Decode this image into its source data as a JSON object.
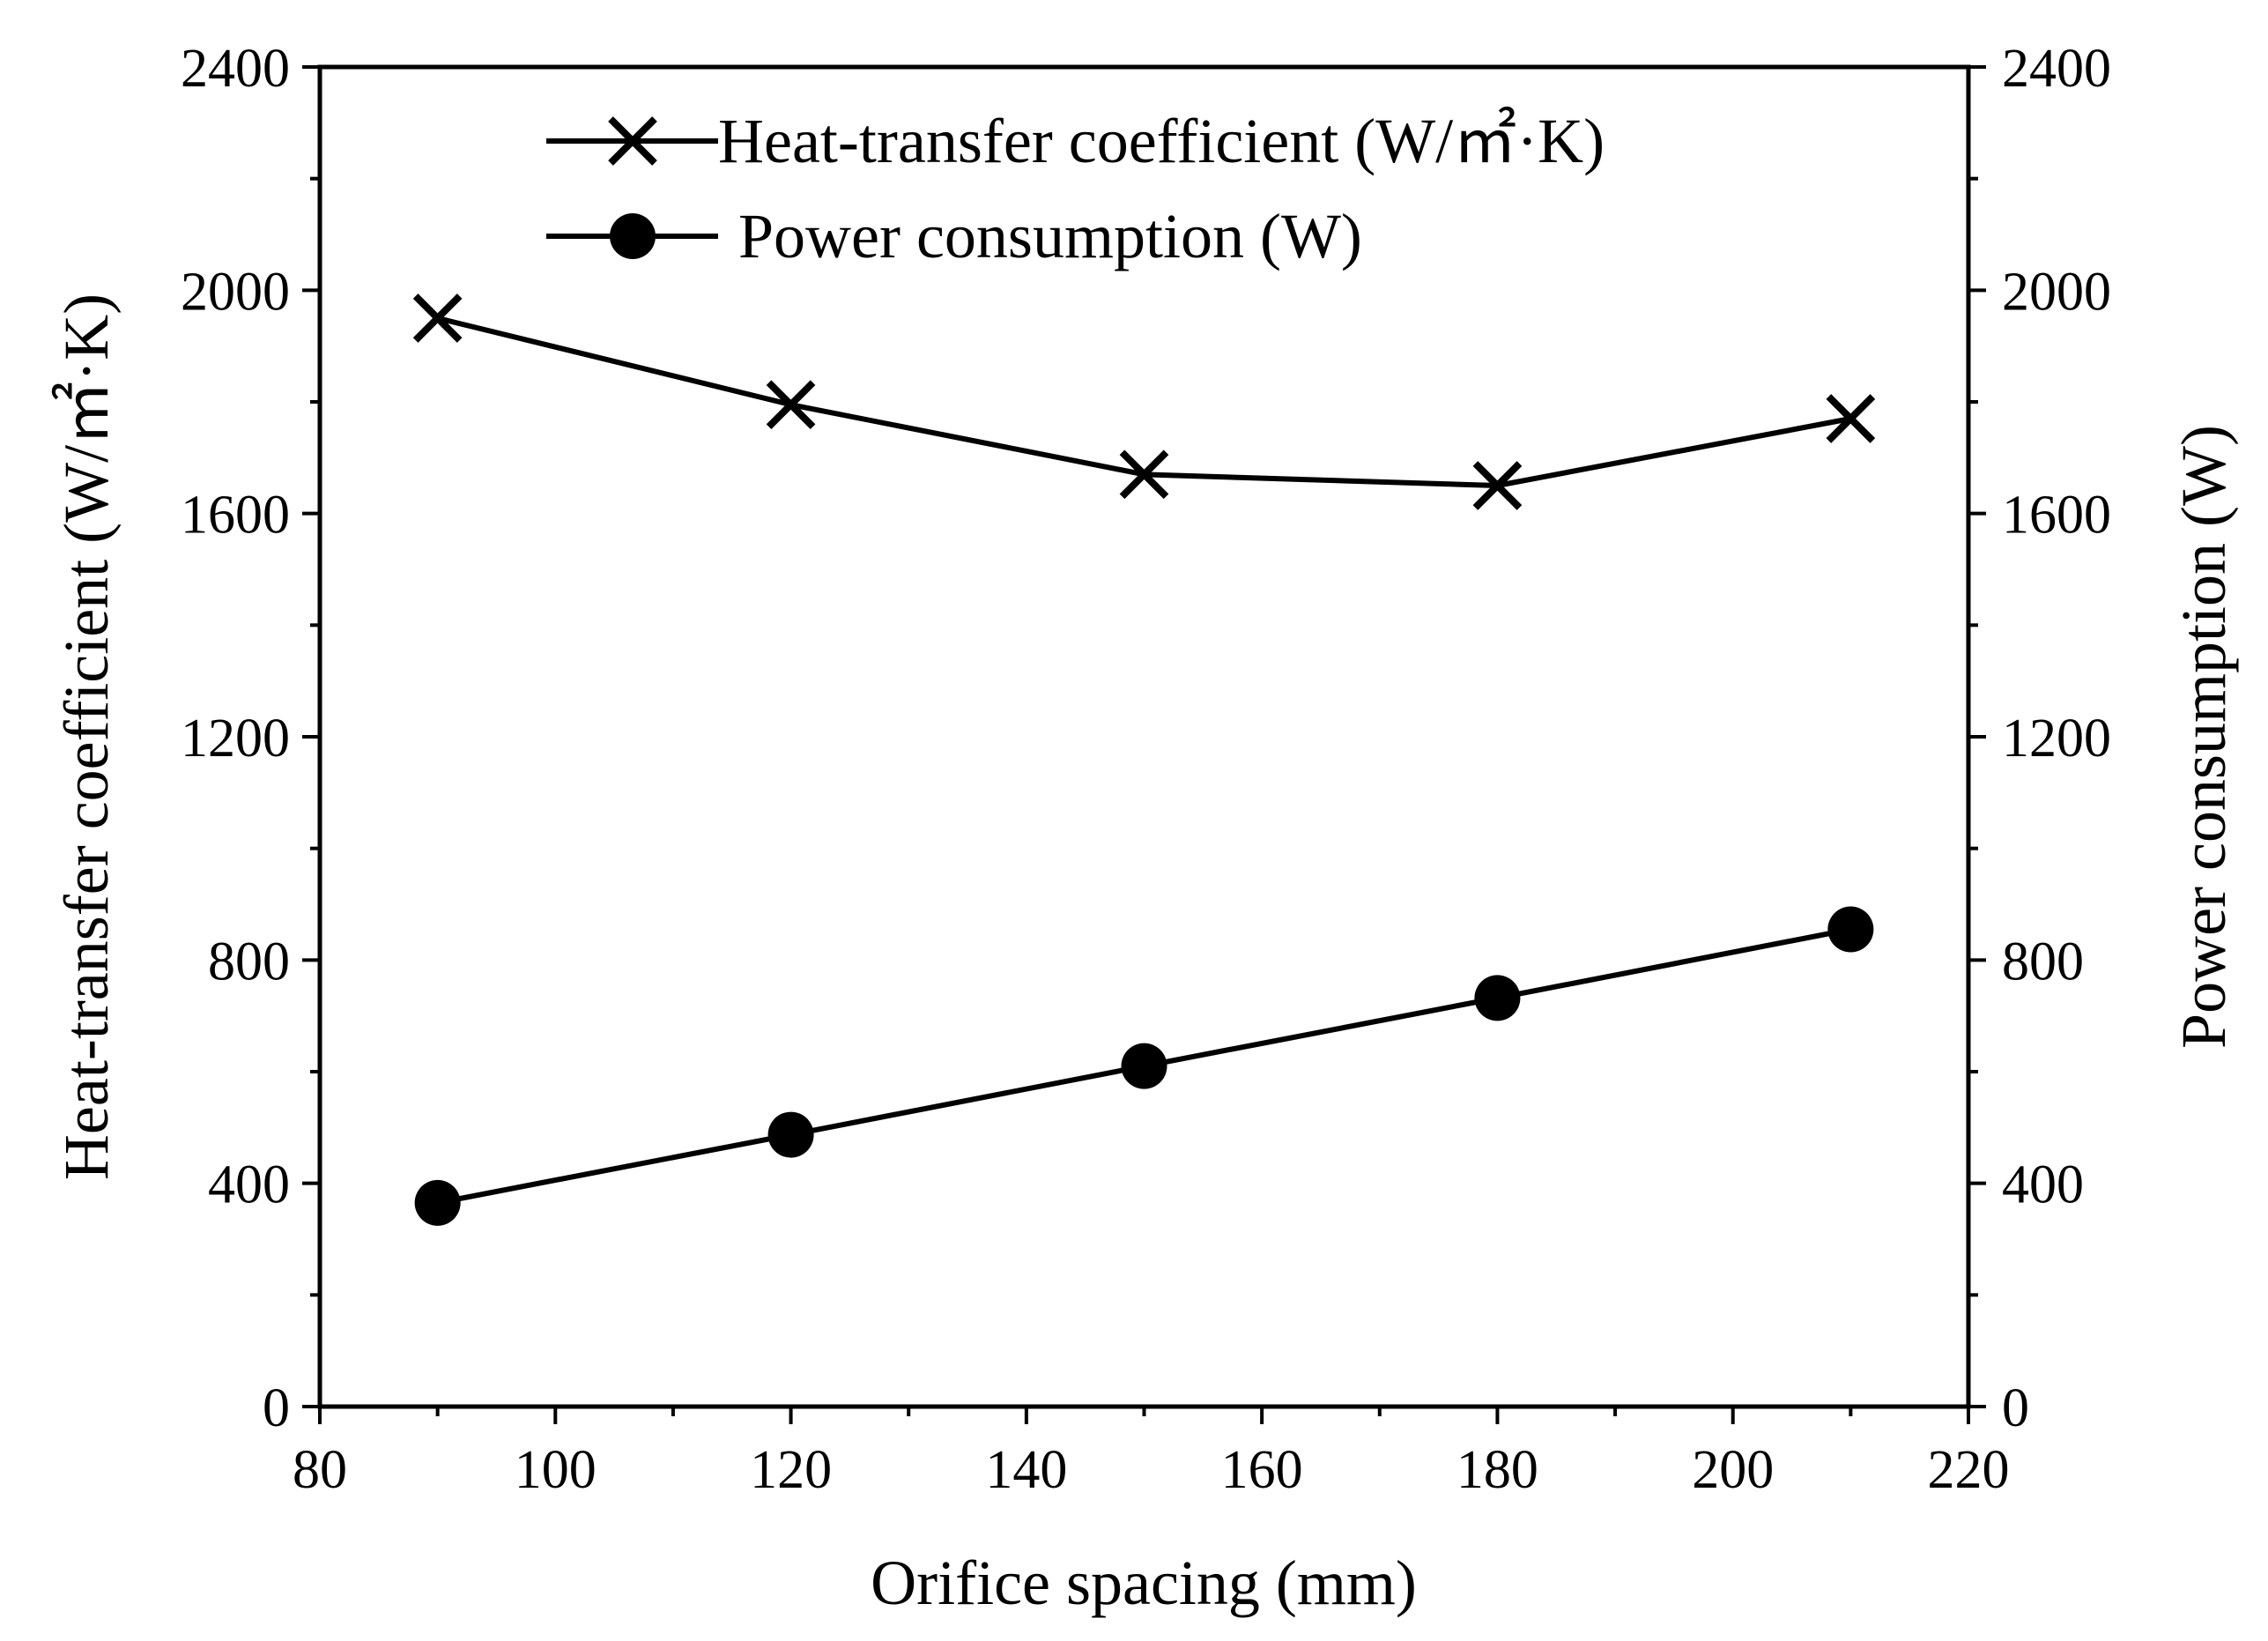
{
  "chart_data": {
    "type": "line",
    "x": [
      90,
      120,
      150,
      180,
      210
    ],
    "xlabel": "Orifice spacing (mm)",
    "ylabel_left": "Heat-transfer coefficient (W/㎡·K)",
    "ylabel_right": "Power consumption (W)",
    "xlim": [
      80,
      220
    ],
    "ylim_left": [
      0,
      2400
    ],
    "ylim_right": [
      0,
      2400
    ],
    "x_ticks": [
      "80",
      "100",
      "120",
      "140",
      "160",
      "180",
      "200",
      "220"
    ],
    "y_ticks": [
      "0",
      "400",
      "800",
      "1200",
      "1600",
      "2000",
      "2400"
    ],
    "grid": false,
    "legend_position": "top-center",
    "series": [
      {
        "name": "Heat-transfer coefficient (W/㎡·K)",
        "marker": "x",
        "axis": "left",
        "values": [
          1950,
          1795,
          1670,
          1650,
          1770
        ]
      },
      {
        "name": "Power consumption (W)",
        "marker": "circle",
        "axis": "right",
        "values": [
          365,
          487,
          610,
          732,
          855
        ]
      }
    ],
    "colors": {
      "line": "#000000",
      "background": "#ffffff"
    }
  }
}
